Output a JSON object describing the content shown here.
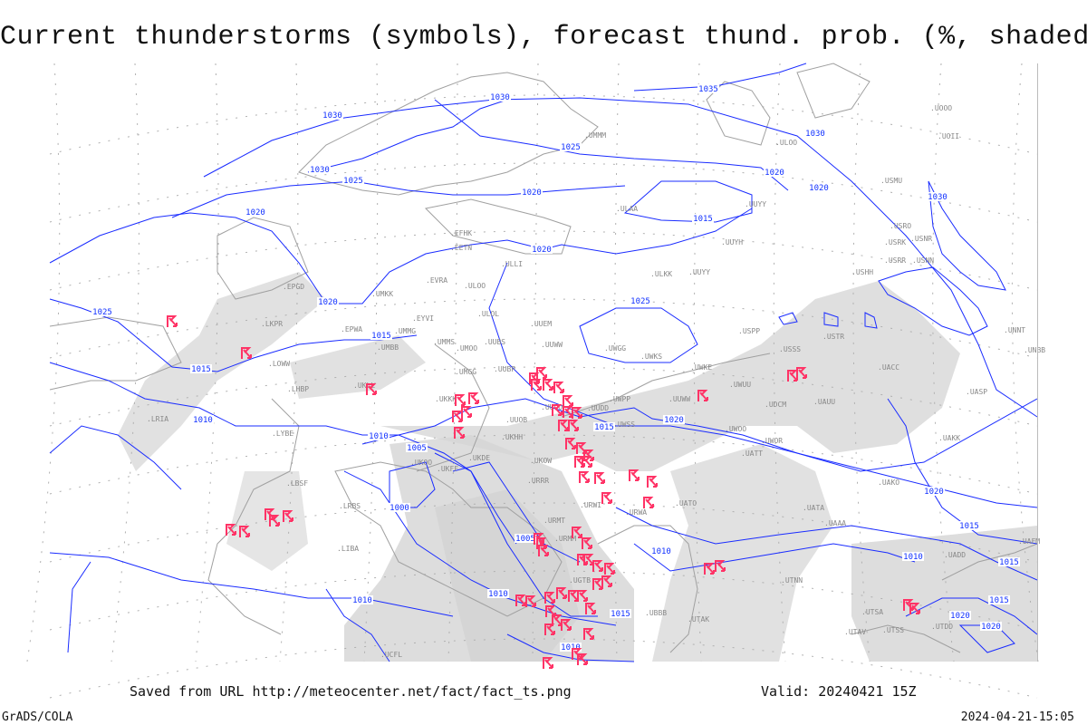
{
  "title": "Current thunderstorms (symbols), forecast thund. prob. (%, shaded)",
  "footer": {
    "saved_from": "Saved from URL http://meteocenter.net/fact/fact_ts.png",
    "valid": "Valid: 20240421 15Z",
    "software": "GrADS/COLA",
    "timestamp": "2024-04-21-15:05"
  },
  "colors": {
    "isobars": "#1a2cff",
    "coastlines": "#a0a0a0",
    "grid": "#b0b0b0",
    "thunderstorm_symbol": "#ff3366",
    "probability_shading": "#d4d4d4"
  },
  "icons": {
    "thunderstorm": "thunderstorm-symbol-icon"
  },
  "isobar_labels": [
    "1030",
    "1030",
    "1035",
    "1030",
    "1025",
    "1030",
    "1025",
    "1020",
    "1020",
    "1015",
    "1020",
    "1020",
    "1020",
    "1025",
    "1015",
    "1020",
    "1015",
    "1010",
    "1005",
    "1000",
    "1010",
    "1015",
    "1020",
    "1025",
    "1020",
    "1015",
    "1005",
    "1010",
    "1010",
    "1010",
    "1010",
    "1015",
    "1010",
    "1015",
    "1015",
    "1020",
    "1020",
    "1030"
  ],
  "stations": [
    "UMMM",
    "ULOO",
    "UUYY",
    "UUYH",
    "ULKK",
    "UUYY",
    "ULAA",
    "EFHK",
    "EETN",
    "ULLI",
    "EVRA",
    "ULOO",
    "UMKK",
    "EYVI",
    "UMMG",
    "ULOL",
    "UUEM",
    "UUWW",
    "UMMS",
    "UMOO",
    "UUBS",
    "EPWA",
    "UMBB",
    "UMGG",
    "UUBP",
    "UKLL",
    "UKKK",
    "UUOO",
    "UWPP",
    "UUWW",
    "UUDD",
    "UUOB",
    "UWSS",
    "UKFF",
    "UKOO",
    "UKHH",
    "UKDE",
    "UKOW",
    "URRR",
    "URWI",
    "URWA",
    "URMT",
    "URMM",
    "UGTB",
    "UBBB",
    "USSS",
    "USTR",
    "USHH",
    "USPP",
    "USRO",
    "USRK",
    "USNR",
    "USRR",
    "USNN",
    "USMU",
    "UOOO",
    "UOII",
    "UACC",
    "UAKK",
    "UATT",
    "UWOO",
    "UWOR",
    "UDCM",
    "UAUU",
    "UATO",
    "UAKO",
    "UATA",
    "UAAA",
    "UTNN",
    "UTAV",
    "UTAK",
    "UASP",
    "UNNT",
    "UNBB",
    "UWKE",
    "UWUU",
    "UWKS",
    "UWGG",
    "LBSF",
    "LYBE",
    "LHBP",
    "LOWW",
    "EPGD",
    "LKPR",
    "LRBS",
    "LIBA",
    "LRIA",
    "UTSA",
    "UTDD",
    "UADD",
    "UAFM",
    "UTSS",
    "UCFL"
  ]
}
